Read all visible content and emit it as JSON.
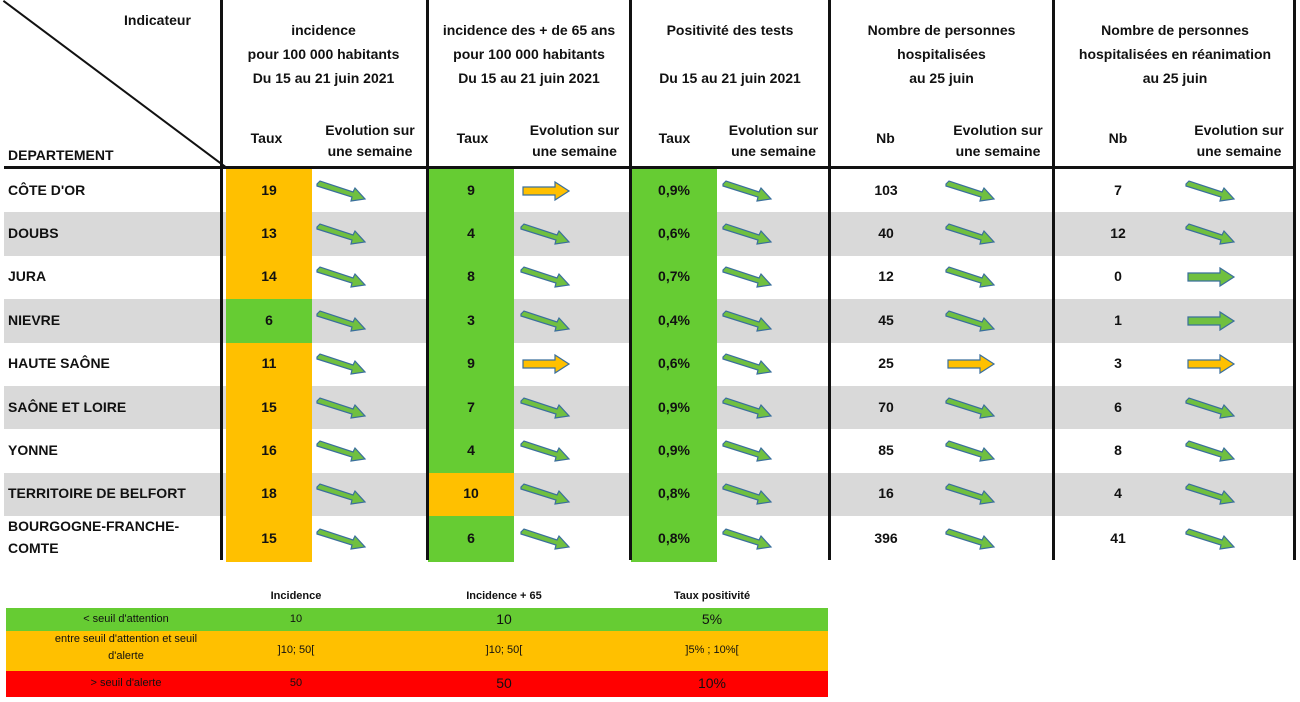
{
  "header": {
    "indicateur": "Indicateur",
    "departement": "DEPARTEMENT",
    "groups": [
      {
        "lines": [
          "incidence",
          "pour 100 000 habitants",
          "Du 15 au 21 juin 2021"
        ],
        "sub1": "Taux",
        "sub2": [
          "Evolution sur",
          "une semaine"
        ]
      },
      {
        "lines": [
          "incidence des + de 65 ans",
          "pour 100 000 habitants",
          "Du 15 au 21 juin 2021"
        ],
        "sub1": "Taux",
        "sub2": [
          "Evolution sur",
          "une semaine"
        ]
      },
      {
        "lines": [
          "Positivité des tests",
          "",
          "Du 15 au 21 juin 2021"
        ],
        "sub1": "Taux",
        "sub2": [
          "Evolution sur",
          "une semaine"
        ]
      },
      {
        "lines": [
          "Nombre de personnes",
          "hospitalisées",
          "au 25 juin"
        ],
        "sub1": "Nb",
        "sub2": [
          "Evolution sur",
          "une semaine"
        ]
      },
      {
        "lines": [
          "Nombre de personnes",
          "hospitalisées en réanimation",
          "au 25 juin"
        ],
        "sub1": "Nb",
        "sub2": [
          "Evolution sur",
          "une semaine"
        ]
      }
    ]
  },
  "colors": {
    "green": "#66cc33",
    "orange": "#ffc000",
    "red": "#ff0000",
    "grey_row": "#d9d9d9",
    "arrow_green": "#70c040",
    "arrow_orange": "#ffc000"
  },
  "rows": [
    {
      "dept": [
        "CÔTE D'OR"
      ],
      "inc": "19",
      "inc_color": "orange",
      "inc_trend": "down",
      "inc65": "9",
      "inc65_color": "green",
      "inc65_trend": "flat-orange",
      "pos": "0,9%",
      "pos_trend": "down",
      "hosp": "103",
      "hosp_trend": "down",
      "rea": "7",
      "rea_trend": "down"
    },
    {
      "dept": [
        "DOUBS"
      ],
      "inc": "13",
      "inc_color": "orange",
      "inc_trend": "down",
      "inc65": "4",
      "inc65_color": "green",
      "inc65_trend": "down",
      "pos": "0,6%",
      "pos_trend": "down",
      "hosp": "40",
      "hosp_trend": "down",
      "rea": "12",
      "rea_trend": "down"
    },
    {
      "dept": [
        "JURA"
      ],
      "inc": "14",
      "inc_color": "orange",
      "inc_trend": "down",
      "inc65": "8",
      "inc65_color": "green",
      "inc65_trend": "down",
      "pos": "0,7%",
      "pos_trend": "down",
      "hosp": "12",
      "hosp_trend": "down",
      "rea": "0",
      "rea_trend": "flat-green"
    },
    {
      "dept": [
        "NIEVRE"
      ],
      "inc": "6",
      "inc_color": "green",
      "inc_trend": "down",
      "inc65": "3",
      "inc65_color": "green",
      "inc65_trend": "down",
      "pos": "0,4%",
      "pos_trend": "down",
      "hosp": "45",
      "hosp_trend": "down",
      "rea": "1",
      "rea_trend": "flat-green"
    },
    {
      "dept": [
        "HAUTE SAÔNE"
      ],
      "inc": "11",
      "inc_color": "orange",
      "inc_trend": "down",
      "inc65": "9",
      "inc65_color": "green",
      "inc65_trend": "flat-orange",
      "pos": "0,6%",
      "pos_trend": "down",
      "hosp": "25",
      "hosp_trend": "flat-orange",
      "rea": "3",
      "rea_trend": "flat-orange"
    },
    {
      "dept": [
        "SAÔNE ET LOIRE"
      ],
      "inc": "15",
      "inc_color": "orange",
      "inc_trend": "down",
      "inc65": "7",
      "inc65_color": "green",
      "inc65_trend": "down",
      "pos": "0,9%",
      "pos_trend": "down",
      "hosp": "70",
      "hosp_trend": "down",
      "rea": "6",
      "rea_trend": "down"
    },
    {
      "dept": [
        "YONNE"
      ],
      "inc": "16",
      "inc_color": "orange",
      "inc_trend": "down",
      "inc65": "4",
      "inc65_color": "green",
      "inc65_trend": "down",
      "pos": "0,9%",
      "pos_trend": "down",
      "hosp": "85",
      "hosp_trend": "down",
      "rea": "8",
      "rea_trend": "down"
    },
    {
      "dept": [
        "TERRITOIRE DE BELFORT"
      ],
      "inc": "18",
      "inc_color": "orange",
      "inc_trend": "down",
      "inc65": "10",
      "inc65_color": "orange",
      "inc65_trend": "down",
      "pos": "0,8%",
      "pos_trend": "down",
      "hosp": "16",
      "hosp_trend": "down",
      "rea": "4",
      "rea_trend": "down"
    },
    {
      "dept": [
        "BOURGOGNE-FRANCHE-",
        "COMTE"
      ],
      "inc": "15",
      "inc_color": "orange",
      "inc_trend": "down",
      "inc65": "6",
      "inc65_color": "green",
      "inc65_trend": "down",
      "pos": "0,8%",
      "pos_trend": "down",
      "hosp": "396",
      "hosp_trend": "down",
      "rea": "41",
      "rea_trend": "down"
    }
  ],
  "legend": {
    "headers": [
      "Incidence",
      "Incidence + 65",
      "Taux positivité"
    ],
    "rows": [
      {
        "label": [
          "< seuil d'attention"
        ],
        "values": [
          "10",
          "10",
          "5%"
        ],
        "color": "green"
      },
      {
        "label": [
          "entre seuil d'attention et seuil",
          "d'alerte"
        ],
        "values": [
          "]10; 50[",
          "]10; 50[",
          "]5% ; 10%["
        ],
        "color": "orange"
      },
      {
        "label": [
          "> seuil d'alerte"
        ],
        "values": [
          "50",
          "50",
          "10%"
        ],
        "color": "red"
      }
    ]
  }
}
